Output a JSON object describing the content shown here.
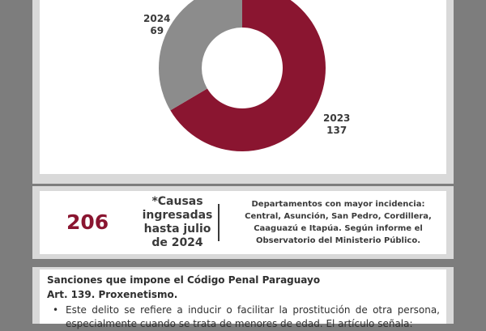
{
  "colors": {
    "slice_2023": "#8a1530",
    "slice_2024": "#8c8c8c",
    "accent": "#8a1530",
    "frame": "#7d7d7d"
  },
  "chart_data": {
    "type": "pie",
    "donut": true,
    "categories": [
      "2023",
      "2024"
    ],
    "values": [
      137,
      69
    ],
    "legend": "none"
  },
  "slice_labels": [
    {
      "year": "2024",
      "value": "69"
    },
    {
      "year": "2023",
      "value": "137"
    }
  ],
  "stats": {
    "total": "206",
    "note_lines": [
      "*Causas",
      "ingresadas",
      "hasta julio",
      "de 2024"
    ],
    "departments_lines": [
      "Departamentos con mayor incidencia:",
      "Central,  Asunción, San Pedro, Cordillera,",
      "Caaguazú e Itapúa. Según informe el",
      "Observatorio del Ministerio Público."
    ]
  },
  "sanctions": {
    "title": "Sanciones que impone el Código Penal Paraguayo",
    "article": "Art. 139. Proxenetismo.",
    "bullet": "Este delito se refiere a inducir o facilitar la prostitución de otra persona, especialmente cuando se trata de menores de edad. El artículo señala:"
  }
}
